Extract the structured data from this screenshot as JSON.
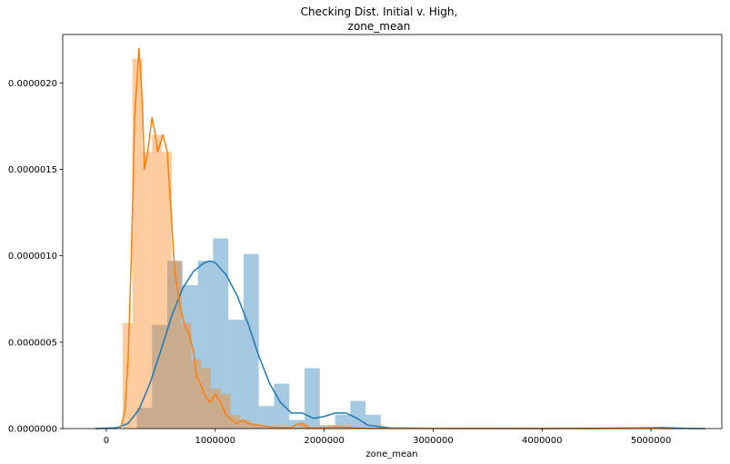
{
  "chart_data": {
    "type": "histogram",
    "title_lines": [
      "Checking Dist. Initial v. High,",
      "zone_mean"
    ],
    "xlabel": "zone_mean",
    "ylabel": "",
    "xlim": [
      -400000,
      5650000
    ],
    "ylim": [
      0,
      2.28e-06
    ],
    "xticks": [
      0,
      1000000,
      2000000,
      3000000,
      4000000,
      5000000
    ],
    "xtick_labels": [
      "0",
      "1000000",
      "2000000",
      "3000000",
      "4000000",
      "5000000"
    ],
    "yticks": [
      0,
      5e-07,
      1e-06,
      1.5e-06,
      2e-06
    ],
    "ytick_labels": [
      "0.0000000",
      "0.0000005",
      "0.0000010",
      "0.0000015",
      "0.0000020"
    ],
    "grid": false,
    "legend": "none",
    "series": [
      {
        "color": "#1f77b4",
        "bin_width": 140000,
        "bins": [
          [
            280000,
            1.2e-07
          ],
          [
            420000,
            6e-07
          ],
          [
            560000,
            9.7e-07
          ],
          [
            700000,
            8.3e-07
          ],
          [
            840000,
            9.7e-07
          ],
          [
            980000,
            1.1e-06
          ],
          [
            1120000,
            6.3e-07
          ],
          [
            1260000,
            1.01e-06
          ],
          [
            1400000,
            1.3e-07
          ],
          [
            1540000,
            2.6e-07
          ],
          [
            1680000,
            5e-08
          ],
          [
            1820000,
            3.5e-07
          ],
          [
            1960000,
            2e-08
          ],
          [
            2100000,
            8e-08
          ],
          [
            2240000,
            1.6e-07
          ],
          [
            2380000,
            8e-08
          ]
        ],
        "kde": [
          [
            -100000,
            0
          ],
          [
            100000,
            5e-09
          ],
          [
            200000,
            3e-08
          ],
          [
            300000,
            1.1e-07
          ],
          [
            400000,
            2.6e-07
          ],
          [
            500000,
            4.5e-07
          ],
          [
            600000,
            6.5e-07
          ],
          [
            700000,
            8.1e-07
          ],
          [
            800000,
            9.1e-07
          ],
          [
            900000,
            9.6e-07
          ],
          [
            950000,
            9.7e-07
          ],
          [
            1000000,
            9.6e-07
          ],
          [
            1100000,
            8.9e-07
          ],
          [
            1200000,
            7.7e-07
          ],
          [
            1300000,
            6.1e-07
          ],
          [
            1400000,
            4.2e-07
          ],
          [
            1500000,
            2.6e-07
          ],
          [
            1600000,
            1.5e-07
          ],
          [
            1700000,
            9e-08
          ],
          [
            1800000,
            9e-08
          ],
          [
            1900000,
            6e-08
          ],
          [
            2000000,
            7e-08
          ],
          [
            2100000,
            9e-08
          ],
          [
            2200000,
            9e-08
          ],
          [
            2300000,
            6e-08
          ],
          [
            2400000,
            2e-08
          ],
          [
            2600000,
            4e-09
          ],
          [
            3000000,
            1e-09
          ],
          [
            3500000,
            1e-09
          ],
          [
            4000000,
            5e-10
          ],
          [
            4500000,
            5e-10
          ],
          [
            5000000,
            5e-09
          ],
          [
            5100000,
            6e-09
          ],
          [
            5300000,
            1e-09
          ],
          [
            5500000,
            0
          ]
        ]
      },
      {
        "color": "#ff7f0e",
        "bin_width": 90000,
        "bins": [
          [
            150000,
            6.1e-07
          ],
          [
            240000,
            2.14e-06
          ],
          [
            330000,
            1.6e-06
          ],
          [
            420000,
            1.7e-06
          ],
          [
            510000,
            1.6e-06
          ],
          [
            600000,
            9.7e-07
          ],
          [
            690000,
            6.1e-07
          ],
          [
            780000,
            4e-07
          ],
          [
            870000,
            3.5e-07
          ],
          [
            960000,
            2.3e-07
          ],
          [
            1050000,
            2e-07
          ],
          [
            1140000,
            8e-08
          ],
          [
            1230000,
            5e-08
          ],
          [
            1320000,
            2e-08
          ],
          [
            1410000,
            1e-08
          ],
          [
            1500000,
            1e-08
          ],
          [
            1590000,
            5e-09
          ],
          [
            1680000,
            1e-08
          ],
          [
            1770000,
            2.5e-08
          ],
          [
            1860000,
            5e-09
          ],
          [
            2040000,
            5e-09
          ],
          [
            2130000,
            1e-08
          ],
          [
            2220000,
            5e-09
          ],
          [
            2310000,
            5e-09
          ]
        ],
        "kde": [
          [
            130000,
            0
          ],
          [
            170000,
            1e-07
          ],
          [
            200000,
            4e-07
          ],
          [
            230000,
            1e-06
          ],
          [
            260000,
            1.8e-06
          ],
          [
            300000,
            2.2e-06
          ],
          [
            330000,
            1.9e-06
          ],
          [
            350000,
            1.5e-06
          ],
          [
            380000,
            1.6e-06
          ],
          [
            420000,
            1.8e-06
          ],
          [
            450000,
            1.7e-06
          ],
          [
            470000,
            1.6e-06
          ],
          [
            520000,
            1.7e-06
          ],
          [
            560000,
            1.6e-06
          ],
          [
            600000,
            1.2e-06
          ],
          [
            630000,
            9e-07
          ],
          [
            680000,
            7e-07
          ],
          [
            720000,
            6e-07
          ],
          [
            760000,
            5.5e-07
          ],
          [
            800000,
            4.5e-07
          ],
          [
            830000,
            3e-07
          ],
          [
            870000,
            2.5e-07
          ],
          [
            900000,
            2e-07
          ],
          [
            950000,
            1.5e-07
          ],
          [
            1000000,
            2e-07
          ],
          [
            1050000,
            1.5e-07
          ],
          [
            1100000,
            8e-08
          ],
          [
            1150000,
            5e-08
          ],
          [
            1200000,
            3e-08
          ],
          [
            1250000,
            5e-08
          ],
          [
            1300000,
            3e-08
          ],
          [
            1400000,
            2e-08
          ],
          [
            1500000,
            1e-08
          ],
          [
            1600000,
            5e-09
          ],
          [
            1700000,
            8e-09
          ],
          [
            1750000,
            2.5e-08
          ],
          [
            1800000,
            3e-08
          ],
          [
            1850000,
            5e-09
          ],
          [
            1950000,
            3e-09
          ],
          [
            2100000,
            1e-08
          ],
          [
            2200000,
            8e-09
          ],
          [
            2300000,
            4e-09
          ],
          [
            2400000,
            2e-09
          ],
          [
            3000000,
            1e-09
          ],
          [
            4000000,
            5e-10
          ],
          [
            5000000,
            4e-09
          ],
          [
            5200000,
            0
          ]
        ]
      }
    ]
  }
}
